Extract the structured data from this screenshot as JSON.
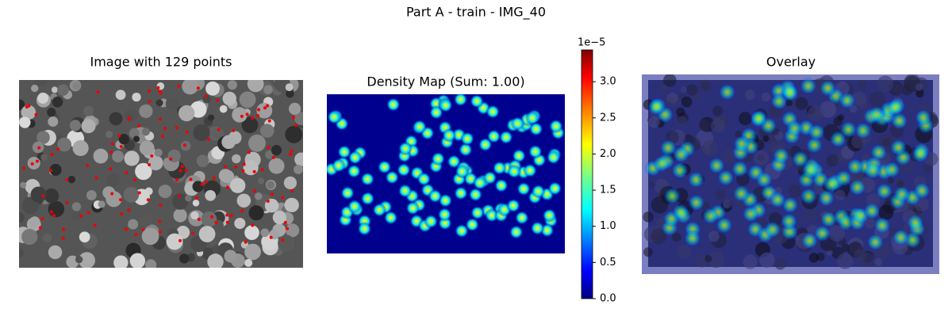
{
  "title": "Part A - train - IMG_40",
  "panels": [
    {
      "title": "Image with 129 points"
    },
    {
      "title": "Density Map (Sum: 1.00)"
    },
    {
      "title": "Overlay"
    }
  ],
  "colorbar": {
    "type": "colorbar",
    "colormap": "jet",
    "offset_label": "1e−5",
    "ylim": [
      0,
      3.44
    ],
    "yticks": [
      {
        "value": 0,
        "label": "0.0"
      },
      {
        "value": 0.5,
        "label": "0.5"
      },
      {
        "value": 1,
        "label": "1.0"
      },
      {
        "value": 1.5,
        "label": "1.5"
      },
      {
        "value": 2,
        "label": "2.0"
      },
      {
        "value": 2.5,
        "label": "2.5"
      },
      {
        "value": 3,
        "label": "3.0"
      }
    ]
  }
}
